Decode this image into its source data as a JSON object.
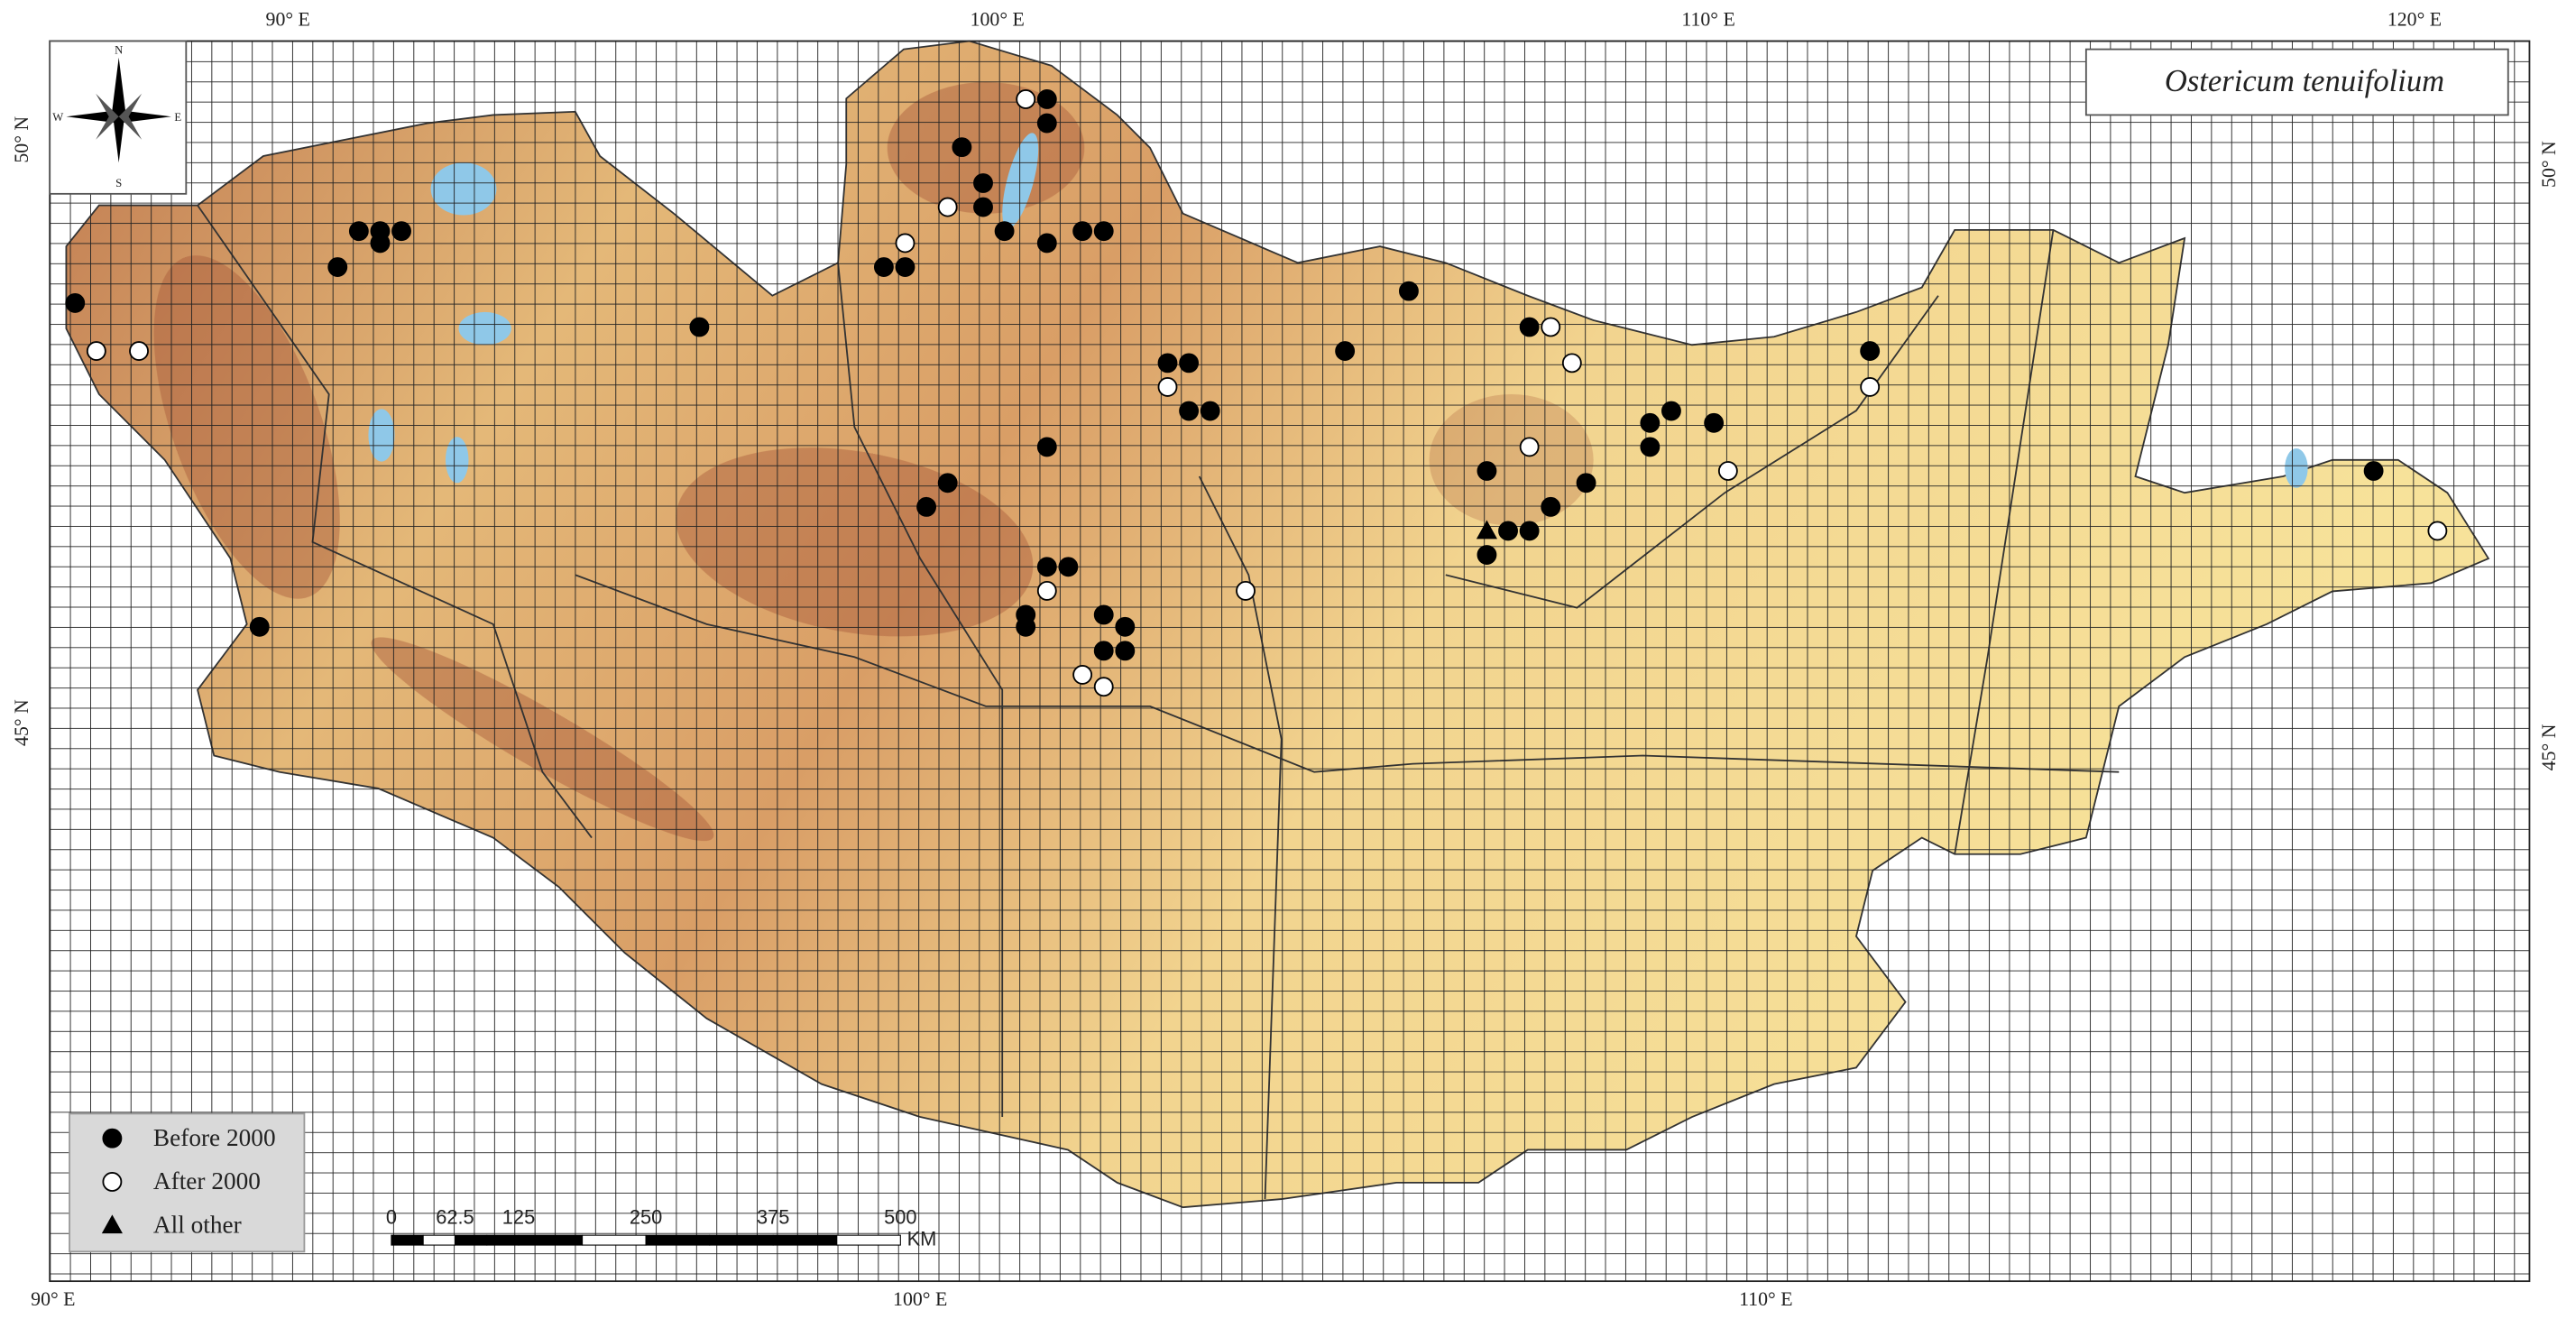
{
  "map": {
    "title": "Ostericum tenuifolium",
    "top_labels": [
      "90° E",
      "100° E",
      "110° E",
      "120° E"
    ],
    "bottom_labels": [
      "90° E",
      "100° E",
      "110° E"
    ],
    "left_labels": [
      "50° N",
      "45° N"
    ],
    "right_labels": [
      "50° N",
      "45° N"
    ],
    "compass": {
      "n": "N",
      "s": "S",
      "e": "E",
      "w": "W"
    },
    "scale": {
      "ticks": [
        0,
        62.5,
        125,
        250,
        375,
        500
      ],
      "unit": "KM"
    },
    "legend": [
      {
        "label": "Before 2000",
        "marker": "circle",
        "color": "#000000",
        "points": [
          [
            87.0,
            48.5
          ],
          [
            90.7,
            48.8
          ],
          [
            91.0,
            49.1
          ],
          [
            91.3,
            49.1
          ],
          [
            91.6,
            49.1
          ],
          [
            91.3,
            49.0
          ],
          [
            95.8,
            48.3
          ],
          [
            99.5,
            49.8
          ],
          [
            99.8,
            49.5
          ],
          [
            100.1,
            49.1
          ],
          [
            99.8,
            49.3
          ],
          [
            100.7,
            50.2
          ],
          [
            100.7,
            50.0
          ],
          [
            100.7,
            49.0
          ],
          [
            101.2,
            49.1
          ],
          [
            101.5,
            49.1
          ],
          [
            98.4,
            48.8
          ],
          [
            98.7,
            48.8
          ],
          [
            102.4,
            48.0
          ],
          [
            102.7,
            48.0
          ],
          [
            102.7,
            47.6
          ],
          [
            103.0,
            47.6
          ],
          [
            100.7,
            47.3
          ],
          [
            99.3,
            47.0
          ],
          [
            99.0,
            46.8
          ],
          [
            100.7,
            46.3
          ],
          [
            101.0,
            46.3
          ],
          [
            100.4,
            45.9
          ],
          [
            100.4,
            45.8
          ],
          [
            101.5,
            45.9
          ],
          [
            101.8,
            45.8
          ],
          [
            101.8,
            45.6
          ],
          [
            101.5,
            45.6
          ],
          [
            104.9,
            48.1
          ],
          [
            105.8,
            48.6
          ],
          [
            107.5,
            48.3
          ],
          [
            106.9,
            47.1
          ],
          [
            107.2,
            46.6
          ],
          [
            107.5,
            46.6
          ],
          [
            107.8,
            46.8
          ],
          [
            108.3,
            47.0
          ],
          [
            109.2,
            47.5
          ],
          [
            109.2,
            47.3
          ],
          [
            109.5,
            47.6
          ],
          [
            110.1,
            47.5
          ],
          [
            112.3,
            48.1
          ],
          [
            119.4,
            47.1
          ],
          [
            106.9,
            46.4
          ],
          [
            89.6,
            45.8
          ]
        ]
      },
      {
        "label": "After 2000",
        "marker": "circle",
        "color": "#ffffff",
        "points": [
          [
            87.3,
            48.1
          ],
          [
            87.9,
            48.1
          ],
          [
            98.7,
            49.0
          ],
          [
            99.3,
            49.3
          ],
          [
            100.4,
            50.2
          ],
          [
            102.4,
            47.8
          ],
          [
            100.7,
            46.1
          ],
          [
            101.2,
            45.4
          ],
          [
            101.5,
            45.3
          ],
          [
            103.5,
            46.1
          ],
          [
            107.8,
            48.3
          ],
          [
            108.1,
            48.0
          ],
          [
            107.5,
            47.3
          ],
          [
            110.3,
            47.1
          ],
          [
            112.3,
            47.8
          ],
          [
            120.3,
            46.6
          ]
        ]
      },
      {
        "label": "All other",
        "marker": "triangle",
        "color": "#000000",
        "points": [
          [
            106.9,
            46.6
          ]
        ]
      }
    ]
  }
}
